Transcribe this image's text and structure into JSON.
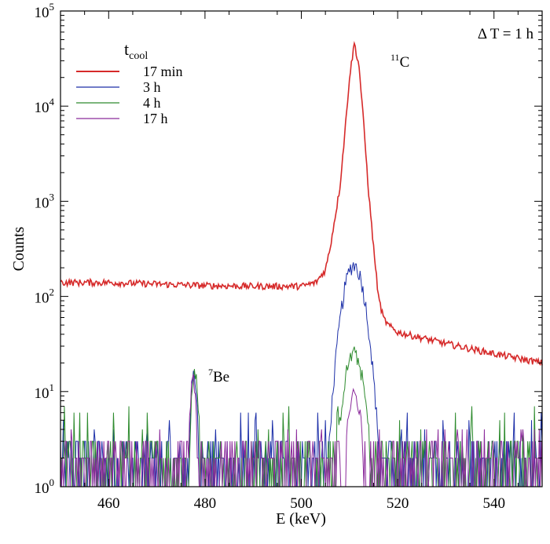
{
  "chart_data": {
    "type": "line",
    "xlabel": "E (keV)",
    "ylabel": "Counts",
    "xlim": [
      450,
      550
    ],
    "ylim": [
      1,
      100000
    ],
    "yscale": "log",
    "x_ticks": [
      460,
      480,
      500,
      520,
      540
    ],
    "y_ticks": [
      {
        "value": 1,
        "base": "10",
        "exp": "0"
      },
      {
        "value": 10,
        "base": "10",
        "exp": "1"
      },
      {
        "value": 100,
        "base": "10",
        "exp": "2"
      },
      {
        "value": 1000,
        "base": "10",
        "exp": "3"
      },
      {
        "value": 10000,
        "base": "10",
        "exp": "4"
      },
      {
        "value": 100000,
        "base": "10",
        "exp": "5"
      }
    ],
    "grid": false,
    "legend": {
      "placement": "top-left",
      "title_main": "t",
      "title_sub": "cool"
    },
    "series": [
      {
        "name": "17 min",
        "color": "#d62a2a",
        "baseline": [
          [
            450,
            140
          ],
          [
            460,
            140
          ],
          [
            480,
            130
          ],
          [
            490,
            128
          ],
          [
            500,
            128
          ],
          [
            503,
            140
          ],
          [
            505,
            190
          ],
          [
            506,
            330
          ],
          [
            508,
            1400
          ],
          [
            509,
            5000
          ],
          [
            510,
            20000
          ],
          [
            511,
            46000
          ],
          [
            512,
            26000
          ],
          [
            513,
            6000
          ],
          [
            514,
            1200
          ],
          [
            515,
            330
          ],
          [
            516,
            100
          ],
          [
            517,
            60
          ],
          [
            518,
            50
          ],
          [
            520,
            42
          ],
          [
            530,
            32
          ],
          [
            540,
            25
          ],
          [
            550,
            20
          ]
        ],
        "jitter": 0.08
      },
      {
        "name": "3 h",
        "color": "#1c2fa8",
        "peaks": [
          {
            "center": 510.9,
            "height": 215,
            "sigma": 1.75
          },
          {
            "center": 477.7,
            "height": 15,
            "sigma": 0.55
          }
        ],
        "noise_max": 6
      },
      {
        "name": "4 h",
        "color": "#2e8b2e",
        "peaks": [
          {
            "center": 510.9,
            "height": 25,
            "sigma": 1.6
          },
          {
            "center": 477.9,
            "height": 15,
            "sigma": 0.6
          }
        ],
        "noise_max": 7
      },
      {
        "name": "17 h",
        "color": "#8b2a9b",
        "peaks": [
          {
            "center": 511.0,
            "height": 9,
            "sigma": 1.2
          },
          {
            "center": 477.5,
            "height": 13,
            "sigma": 0.5
          }
        ],
        "noise_max": 4
      }
    ],
    "annotations": {
      "c11": {
        "sup": "11",
        "text": "C"
      },
      "be7": {
        "sup": "7",
        "text": "Be"
      },
      "dt": "Δ T = 1 h"
    }
  }
}
